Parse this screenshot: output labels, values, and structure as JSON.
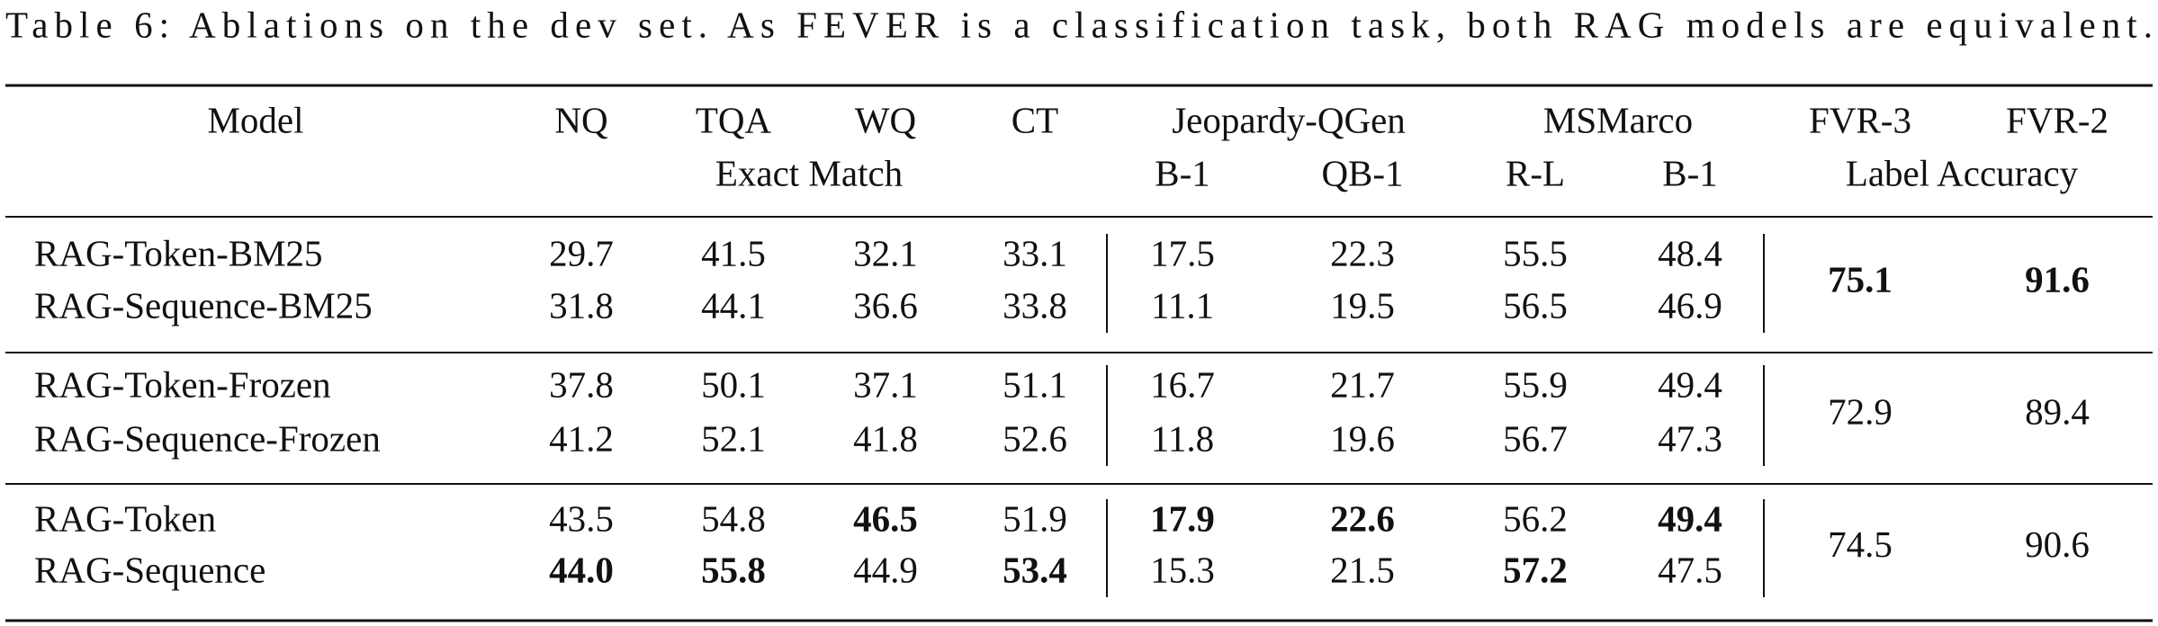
{
  "caption": "Table 6: Ablations on the dev set. As FEVER is a classification task, both RAG models are equivalent.",
  "header": {
    "top": [
      "Model",
      "NQ",
      "TQA",
      "WQ",
      "CT",
      "Jeopardy-QGen",
      "MSMarco",
      "FVR-3",
      "FVR-2"
    ],
    "sub": [
      "Exact Match",
      "B-1",
      "QB-1",
      "R-L",
      "B-1",
      "Label Accuracy"
    ]
  },
  "groups": [
    {
      "rows": [
        {
          "model": "RAG-Token-BM25",
          "values": [
            "29.7",
            "41.5",
            "32.1",
            "33.1",
            "17.5",
            "22.3",
            "55.5",
            "48.4"
          ],
          "bold": [
            false,
            false,
            false,
            false,
            false,
            false,
            false,
            false
          ]
        },
        {
          "model": "RAG-Sequence-BM25",
          "values": [
            "31.8",
            "44.1",
            "36.6",
            "33.8",
            "11.1",
            "19.5",
            "56.5",
            "46.9"
          ],
          "bold": [
            false,
            false,
            false,
            false,
            false,
            false,
            false,
            false
          ]
        }
      ],
      "fvr": [
        "75.1",
        "91.6"
      ],
      "fvr_bold": [
        true,
        true
      ]
    },
    {
      "rows": [
        {
          "model": "RAG-Token-Frozen",
          "values": [
            "37.8",
            "50.1",
            "37.1",
            "51.1",
            "16.7",
            "21.7",
            "55.9",
            "49.4"
          ],
          "bold": [
            false,
            false,
            false,
            false,
            false,
            false,
            false,
            false
          ]
        },
        {
          "model": "RAG-Sequence-Frozen",
          "values": [
            "41.2",
            "52.1",
            "41.8",
            "52.6",
            "11.8",
            "19.6",
            "56.7",
            "47.3"
          ],
          "bold": [
            false,
            false,
            false,
            false,
            false,
            false,
            false,
            false
          ]
        }
      ],
      "fvr": [
        "72.9",
        "89.4"
      ],
      "fvr_bold": [
        false,
        false
      ]
    },
    {
      "rows": [
        {
          "model": "RAG-Token",
          "values": [
            "43.5",
            "54.8",
            "46.5",
            "51.9",
            "17.9",
            "22.6",
            "56.2",
            "49.4"
          ],
          "bold": [
            false,
            false,
            true,
            false,
            true,
            true,
            false,
            true
          ]
        },
        {
          "model": "RAG-Sequence",
          "values": [
            "44.0",
            "55.8",
            "44.9",
            "53.4",
            "15.3",
            "21.5",
            "57.2",
            "47.5"
          ],
          "bold": [
            true,
            true,
            false,
            true,
            false,
            false,
            true,
            false
          ]
        }
      ],
      "fvr": [
        "74.5",
        "90.6"
      ],
      "fvr_bold": [
        false,
        false
      ]
    }
  ]
}
